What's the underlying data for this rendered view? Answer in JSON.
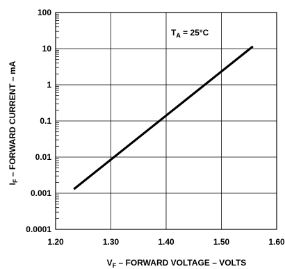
{
  "chart_data": {
    "type": "line",
    "title": "",
    "xlabel": {
      "main": "V",
      "sub": "F",
      "rest": " – FORWARD VOLTAGE – VOLTS"
    },
    "ylabel": {
      "main": "I",
      "sub": "F",
      "rest": " – FORWARD CURRENT – mA"
    },
    "annotation": {
      "main": "T",
      "sub": "A",
      "rest": " = 25°C"
    },
    "x_ticks": [
      {
        "value": 1.2,
        "label": "1.20"
      },
      {
        "value": 1.3,
        "label": "1.30"
      },
      {
        "value": 1.4,
        "label": "1.40"
      },
      {
        "value": 1.5,
        "label": "1.50"
      },
      {
        "value": 1.6,
        "label": "1.60"
      }
    ],
    "y_ticks": [
      {
        "value": 0.0001,
        "label": "0.0001"
      },
      {
        "value": 0.001,
        "label": "0.001"
      },
      {
        "value": 0.01,
        "label": "0.01"
      },
      {
        "value": 0.1,
        "label": "0.1"
      },
      {
        "value": 1,
        "label": "1"
      },
      {
        "value": 10,
        "label": "10"
      },
      {
        "value": 100,
        "label": "100"
      }
    ],
    "xlim": [
      1.2,
      1.6
    ],
    "ylim": [
      0.0001,
      100
    ],
    "y_scale": "log",
    "grid": true,
    "series": [
      {
        "color": "#000000",
        "x": [
          1.233,
          1.557
        ],
        "y": [
          0.0013,
          11.5
        ]
      }
    ]
  }
}
